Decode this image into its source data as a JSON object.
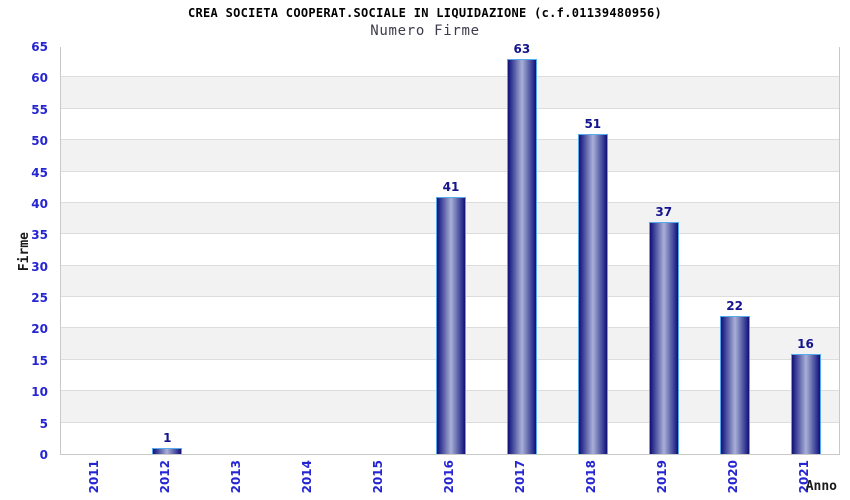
{
  "chart_data": {
    "type": "bar",
    "title": "CREA SOCIETA COOPERAT.SOCIALE IN LIQUIDAZIONE (c.f.01139480956)",
    "subtitle": "Numero Firme",
    "xlabel": "Anno",
    "ylabel": "Firme",
    "categories": [
      "2011",
      "2012",
      "2013",
      "2014",
      "2015",
      "2016",
      "2017",
      "2018",
      "2019",
      "2020",
      "2021"
    ],
    "values": [
      0,
      1,
      0,
      0,
      0,
      41,
      63,
      51,
      37,
      22,
      16
    ],
    "ylim": [
      0,
      65
    ],
    "ytick_step": 5,
    "grid": true,
    "legend": false,
    "bar_value_labels": true,
    "background_bands": "alternating",
    "x_tick_rotation": 90,
    "bars_shown_only_for_nonzero": true
  },
  "colors": {
    "title": "#000000",
    "subtitle": "#3c3c4c",
    "axis_title": "#1a1a1a",
    "axis_tick_label": "#2525d2",
    "bar_value_label": "#14148c",
    "bar_border": "#55aaee",
    "bar_gradient_dark": "#101070",
    "bar_gradient_mid": "#2e3190",
    "bar_gradient_mid2": "#7a81ba",
    "bar_gradient_light": "#aab0d8",
    "band_white": "#ffffff",
    "band_gray": "#f2f2f2",
    "grid_line": "#dddddd",
    "plot_border": "#c9c9c9",
    "page_background": "#ffffff"
  }
}
